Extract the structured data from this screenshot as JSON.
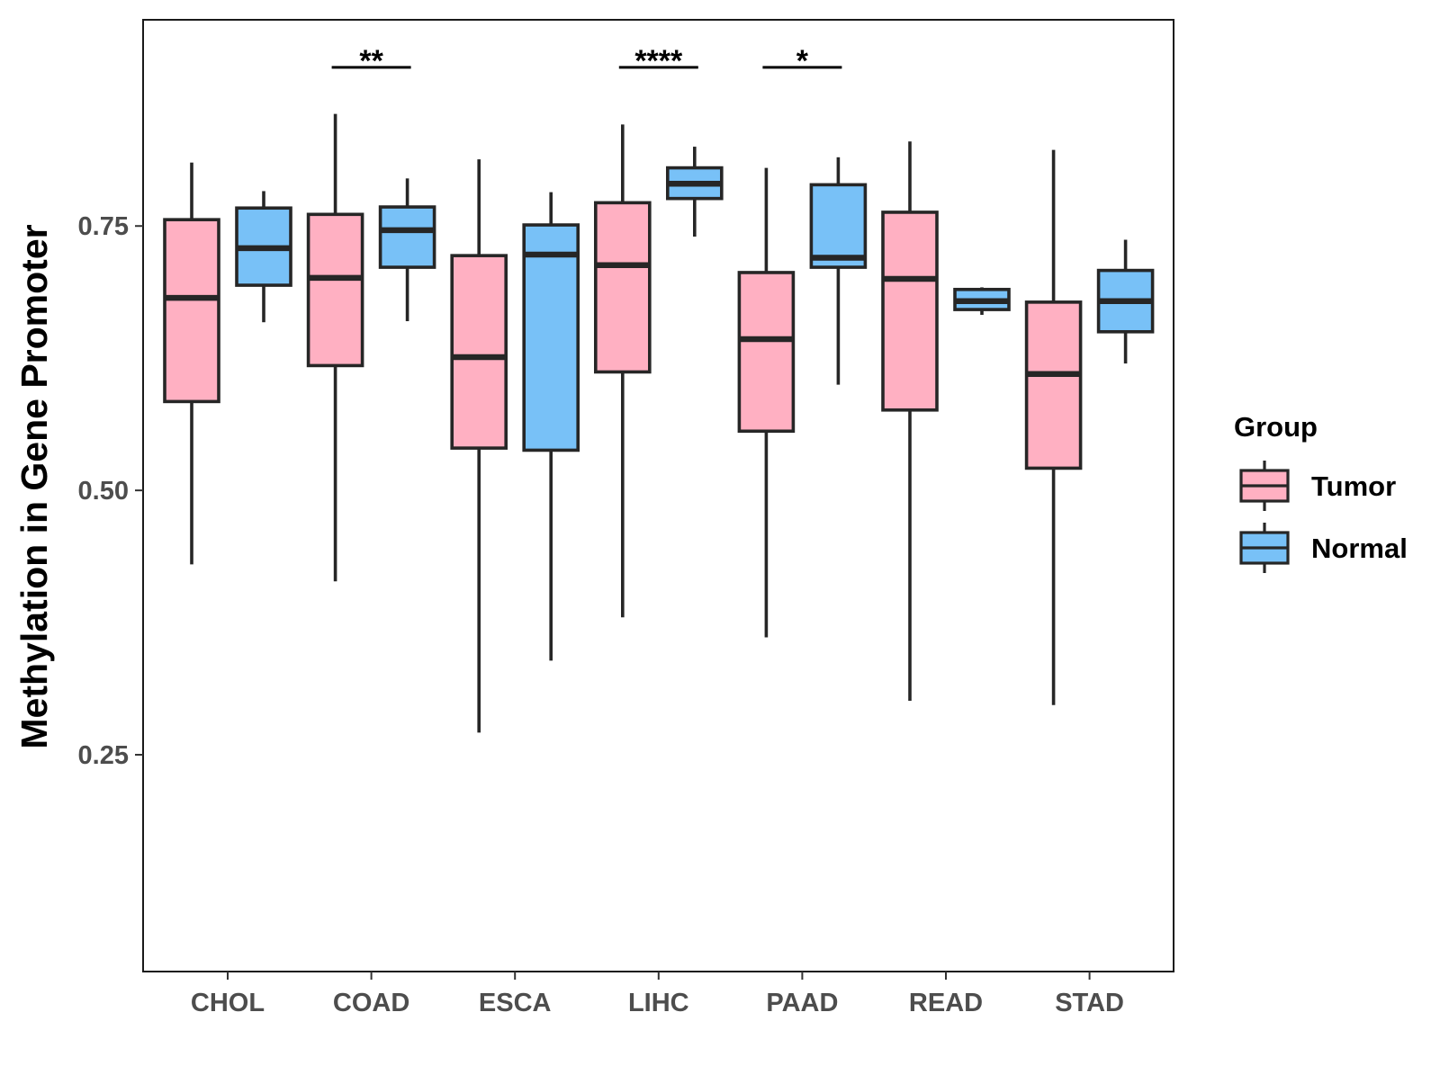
{
  "chart_data": {
    "type": "boxplot",
    "title": "",
    "xlabel": "",
    "ylabel": "Methylation in Gene Promoter",
    "ylim": [
      0.045,
      0.945
    ],
    "yticks": [
      0.25,
      0.5,
      0.75
    ],
    "ytick_labels": [
      "0.25",
      "0.50",
      "0.75"
    ],
    "grid": false,
    "legend": {
      "title": "Group",
      "position": "right",
      "entries": [
        {
          "name": "Tumor",
          "color": "#FFB0C2"
        },
        {
          "name": "Normal",
          "color": "#78C1F7"
        }
      ]
    },
    "categories": [
      "CHOL",
      "COAD",
      "ESCA",
      "LIHC",
      "PAAD",
      "READ",
      "STAD"
    ],
    "series": [
      {
        "name": "Tumor",
        "color": "#FFB0C2",
        "boxes": [
          {
            "lower_whisker": 0.43,
            "q1": 0.584,
            "median": 0.682,
            "q3": 0.756,
            "upper_whisker": 0.81
          },
          {
            "lower_whisker": 0.414,
            "q1": 0.618,
            "median": 0.701,
            "q3": 0.761,
            "upper_whisker": 0.856
          },
          {
            "lower_whisker": 0.271,
            "q1": 0.54,
            "median": 0.626,
            "q3": 0.722,
            "upper_whisker": 0.813
          },
          {
            "lower_whisker": 0.38,
            "q1": 0.612,
            "median": 0.713,
            "q3": 0.772,
            "upper_whisker": 0.846
          },
          {
            "lower_whisker": 0.361,
            "q1": 0.556,
            "median": 0.643,
            "q3": 0.706,
            "upper_whisker": 0.805
          },
          {
            "lower_whisker": 0.301,
            "q1": 0.576,
            "median": 0.7,
            "q3": 0.763,
            "upper_whisker": 0.83
          },
          {
            "lower_whisker": 0.297,
            "q1": 0.521,
            "median": 0.61,
            "q3": 0.678,
            "upper_whisker": 0.822
          }
        ]
      },
      {
        "name": "Normal",
        "color": "#78C1F7",
        "boxes": [
          {
            "lower_whisker": 0.659,
            "q1": 0.694,
            "median": 0.729,
            "q3": 0.767,
            "upper_whisker": 0.783
          },
          {
            "lower_whisker": 0.66,
            "q1": 0.711,
            "median": 0.746,
            "q3": 0.768,
            "upper_whisker": 0.795
          },
          {
            "lower_whisker": 0.339,
            "q1": 0.538,
            "median": 0.723,
            "q3": 0.751,
            "upper_whisker": 0.782
          },
          {
            "lower_whisker": 0.74,
            "q1": 0.776,
            "median": 0.79,
            "q3": 0.805,
            "upper_whisker": 0.825
          },
          {
            "lower_whisker": 0.6,
            "q1": 0.711,
            "median": 0.72,
            "q3": 0.789,
            "upper_whisker": 0.815
          },
          {
            "lower_whisker": 0.666,
            "q1": 0.671,
            "median": 0.679,
            "q3": 0.69,
            "upper_whisker": 0.692
          },
          {
            "lower_whisker": 0.62,
            "q1": 0.65,
            "median": 0.679,
            "q3": 0.708,
            "upper_whisker": 0.737
          }
        ]
      }
    ],
    "significance": [
      {
        "category": "COAD",
        "label": "**"
      },
      {
        "category": "LIHC",
        "label": "****"
      },
      {
        "category": "PAAD",
        "label": "*"
      }
    ],
    "significance_level": 0.9
  }
}
